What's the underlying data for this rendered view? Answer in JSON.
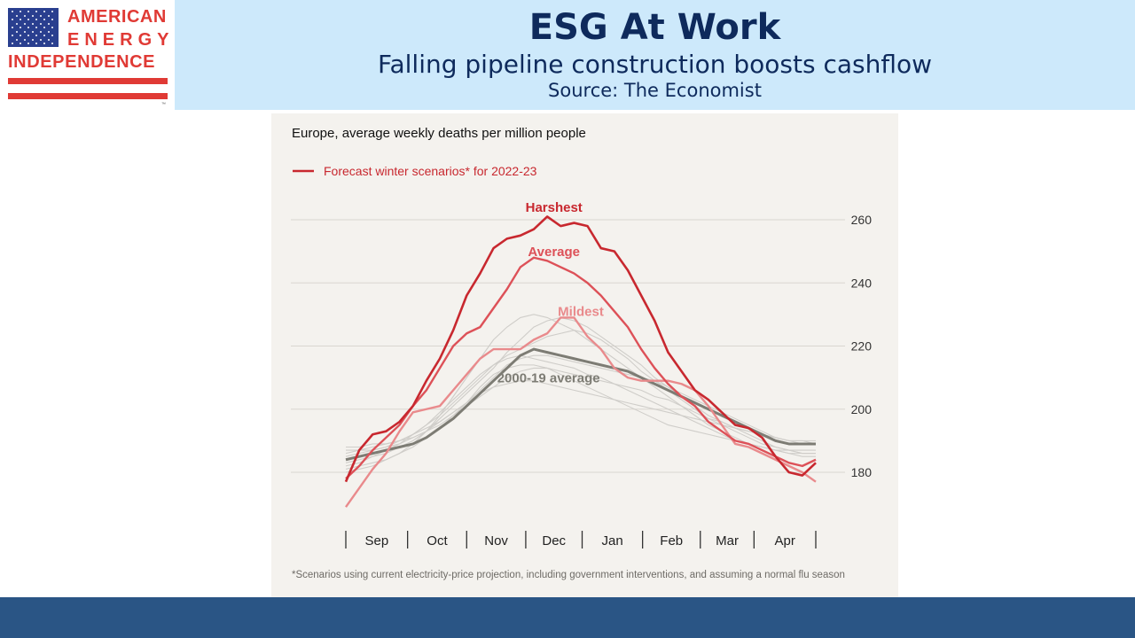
{
  "slide": {
    "title": "ESG At Work",
    "subtitle": "Falling pipeline construction boosts cashflow",
    "source": "Source: The Economist"
  },
  "logo": {
    "line1": "AMERICAN",
    "line2": "ENERGY",
    "line3": "INDEPENDENCE",
    "trademark": "™"
  },
  "colors": {
    "header_band": "#cde9fb",
    "title_text": "#0e2a5c",
    "logo_red": "#e03a35",
    "logo_blue": "#2a3f8f",
    "footer_bar": "#2a5585",
    "chart_bg": "#f4f2ee",
    "harshest": "#c8282f",
    "average": "#dd5158",
    "mildest": "#e98a8c",
    "hist_avg": "#7d7c74",
    "history_lines": "#cfcdc9",
    "gridline": "#d9d6d0"
  },
  "chart_data": {
    "type": "line",
    "title": "Europe, average weekly deaths per million people",
    "legend": {
      "label": "Forecast winter scenarios* for 2022-23",
      "placement": "top-left"
    },
    "footnote": "*Scenarios using current electricity-price projection, including government interventions, and assuming a normal flu season",
    "ylim": [
      170,
      262
    ],
    "yticks": [
      180,
      200,
      220,
      240,
      260
    ],
    "ytick_labels": [
      "180",
      "200",
      "220",
      "240",
      "260"
    ],
    "x_range": [
      0,
      35
    ],
    "months": [
      "Sep",
      "Oct",
      "Nov",
      "Dec",
      "Jan",
      "Feb",
      "Mar",
      "Apr"
    ],
    "month_boundaries": [
      0,
      4.6,
      9,
      13.4,
      17.6,
      22.1,
      26.4,
      30.4,
      35
    ],
    "grid": true,
    "series": [
      {
        "name": "Harshest",
        "label": "Harshest",
        "color": "#c8282f",
        "x": [
          0,
          1,
          2,
          3,
          4,
          5,
          6,
          7,
          8,
          9,
          10,
          11,
          12,
          13,
          14,
          15,
          16,
          17,
          18,
          19,
          20,
          21,
          22,
          23,
          24,
          25,
          26,
          27,
          28,
          29,
          30,
          31,
          32,
          33,
          34,
          35
        ],
        "y": [
          177,
          187,
          192,
          193,
          196,
          201,
          209,
          216,
          225,
          236,
          243,
          251,
          254,
          255,
          257,
          261,
          258,
          259,
          258,
          251,
          250,
          244,
          236,
          228,
          218,
          212,
          206,
          203,
          199,
          195,
          194,
          191,
          185,
          180,
          179,
          183
        ]
      },
      {
        "name": "Average",
        "label": "Average",
        "color": "#dd5158",
        "x": [
          0,
          1,
          2,
          3,
          4,
          5,
          6,
          7,
          8,
          9,
          10,
          11,
          12,
          13,
          14,
          15,
          16,
          17,
          18,
          19,
          20,
          21,
          22,
          23,
          24,
          25,
          26,
          27,
          28,
          29,
          30,
          31,
          32,
          33,
          34,
          35
        ],
        "y": [
          178,
          182,
          187,
          191,
          195,
          201,
          206,
          213,
          220,
          224,
          226,
          232,
          238,
          245,
          248,
          247,
          245,
          243,
          240,
          236,
          231,
          226,
          219,
          213,
          208,
          204,
          201,
          196,
          193,
          190,
          189,
          187,
          185,
          183,
          182,
          184
        ]
      },
      {
        "name": "Mildest",
        "label": "Mildest",
        "color": "#e98a8c",
        "x": [
          0,
          1,
          2,
          3,
          4,
          5,
          6,
          7,
          8,
          9,
          10,
          11,
          12,
          13,
          14,
          15,
          16,
          17,
          18,
          19,
          20,
          21,
          22,
          23,
          24,
          25,
          26,
          27,
          28,
          29,
          30,
          31,
          32,
          33,
          34,
          35
        ],
        "y": [
          169,
          175,
          181,
          186,
          193,
          199,
          200,
          201,
          206,
          211,
          216,
          219,
          219,
          219,
          222,
          224,
          229,
          229,
          223,
          219,
          213,
          210,
          209,
          209,
          209,
          208,
          206,
          201,
          195,
          189,
          188,
          186,
          184,
          182,
          180,
          177
        ]
      },
      {
        "name": "2000-19 average",
        "label": "2000-19 average",
        "color": "#7d7c74",
        "x": [
          0,
          1,
          2,
          3,
          4,
          5,
          6,
          7,
          8,
          9,
          10,
          11,
          12,
          13,
          14,
          15,
          16,
          17,
          18,
          19,
          20,
          21,
          22,
          23,
          24,
          25,
          26,
          27,
          28,
          29,
          30,
          31,
          32,
          33,
          34,
          35
        ],
        "y": [
          184,
          185,
          186,
          187,
          188,
          189,
          191,
          194,
          197,
          201,
          205,
          209,
          213,
          217,
          219,
          218,
          217,
          216,
          215,
          214,
          213,
          212,
          210,
          208,
          206,
          204,
          202,
          200,
          198,
          196,
          194,
          192,
          190,
          189,
          189,
          189
        ]
      }
    ],
    "history": [
      {
        "y": [
          185,
          186,
          187,
          188,
          190,
          192,
          195,
          198,
          202,
          206,
          210,
          214,
          216,
          217,
          216,
          215,
          214,
          213,
          211,
          210,
          208,
          206,
          204,
          202,
          200,
          198,
          196,
          194,
          192,
          190,
          189,
          188,
          187,
          186,
          185,
          185
        ]
      },
      {
        "y": [
          180,
          181,
          182,
          184,
          186,
          189,
          193,
          198,
          204,
          210,
          216,
          222,
          226,
          229,
          230,
          229,
          227,
          225,
          222,
          219,
          216,
          213,
          210,
          207,
          204,
          201,
          198,
          195,
          193,
          191,
          189,
          188,
          187,
          186,
          186,
          186
        ]
      },
      {
        "y": [
          186,
          187,
          187,
          188,
          189,
          191,
          193,
          196,
          199,
          202,
          205,
          207,
          208,
          209,
          209,
          208,
          207,
          206,
          205,
          204,
          203,
          202,
          201,
          200,
          199,
          198,
          197,
          196,
          195,
          194,
          193,
          192,
          191,
          190,
          190,
          189
        ]
      },
      {
        "y": [
          182,
          183,
          185,
          187,
          189,
          192,
          195,
          199,
          203,
          207,
          211,
          214,
          217,
          219,
          221,
          223,
          224,
          225,
          224,
          222,
          219,
          216,
          212,
          209,
          206,
          203,
          200,
          197,
          195,
          193,
          191,
          189,
          188,
          187,
          186,
          186
        ]
      },
      {
        "y": [
          188,
          188,
          189,
          189,
          190,
          191,
          193,
          195,
          198,
          201,
          204,
          207,
          210,
          212,
          213,
          213,
          212,
          211,
          210,
          209,
          208,
          207,
          206,
          204,
          203,
          201,
          199,
          197,
          196,
          194,
          193,
          192,
          191,
          190,
          190,
          190
        ]
      },
      {
        "y": [
          183,
          184,
          185,
          186,
          188,
          190,
          193,
          197,
          201,
          205,
          209,
          213,
          218,
          222,
          226,
          228,
          229,
          228,
          226,
          223,
          220,
          217,
          214,
          210,
          207,
          204,
          201,
          198,
          196,
          194,
          192,
          190,
          188,
          187,
          187,
          187
        ]
      },
      {
        "y": [
          187,
          187,
          188,
          189,
          190,
          192,
          194,
          196,
          199,
          202,
          206,
          210,
          214,
          216,
          217,
          217,
          216,
          215,
          214,
          213,
          212,
          211,
          210,
          209,
          207,
          205,
          203,
          201,
          199,
          197,
          195,
          193,
          191,
          190,
          189,
          189
        ]
      },
      {
        "y": [
          181,
          182,
          183,
          184,
          186,
          188,
          191,
          194,
          198,
          202,
          207,
          211,
          213,
          214,
          214,
          213,
          211,
          209,
          207,
          205,
          203,
          201,
          199,
          197,
          195,
          194,
          193,
          192,
          191,
          190,
          189,
          188,
          187,
          187,
          186,
          186
        ]
      }
    ]
  }
}
